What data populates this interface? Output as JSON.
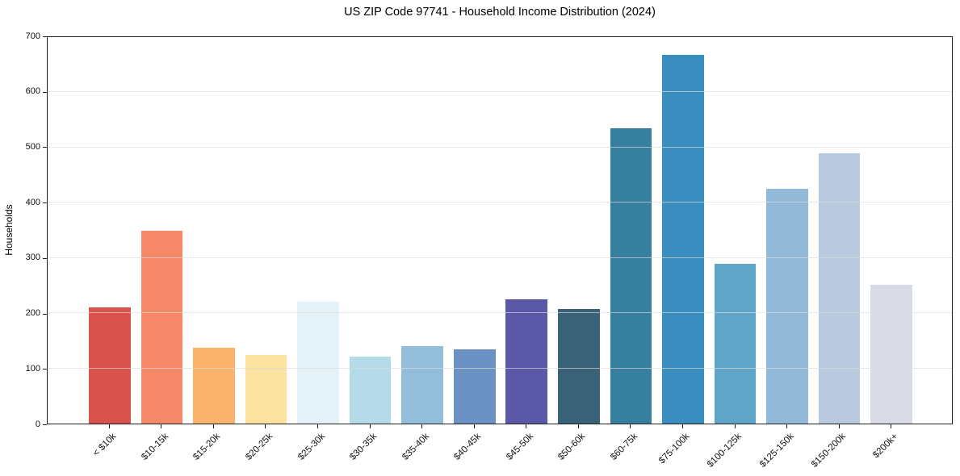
{
  "chart_data": {
    "type": "bar",
    "title": "US ZIP Code 97741 - Household Income Distribution (2024)",
    "xlabel": "",
    "ylabel": "Households",
    "categories": [
      "< $10k",
      "$10-15k",
      "$15-20k",
      "$20-25k",
      "$25-30k",
      "$30-35k",
      "$35-40k",
      "$40-45k",
      "$45-50k",
      "$50-60k",
      "$60-75k",
      "$75-100k",
      "$100-125k",
      "$125-150k",
      "$150-200k",
      "$200k+"
    ],
    "values": [
      210,
      350,
      138,
      124,
      220,
      122,
      141,
      134,
      225,
      208,
      535,
      668,
      290,
      425,
      490,
      252
    ],
    "bar_colors": [
      "#d9534e",
      "#f58868",
      "#fab36c",
      "#fce3a0",
      "#e4f1f6",
      "#b6dbe8",
      "#92bddb",
      "#6c92c4",
      "#5b59a7",
      "#396178",
      "#377f9e",
      "#3a8dbf",
      "#5fa5c8",
      "#93b9d8",
      "#b9cade",
      "#d9dbe7"
    ],
    "ylim": [
      0,
      700
    ],
    "yticks": [
      0,
      100,
      200,
      300,
      400,
      500,
      600,
      700
    ],
    "grid": "horizontal",
    "legend": "none",
    "x_tick_rotation_deg": 45,
    "bar_width_fraction": 0.8
  }
}
